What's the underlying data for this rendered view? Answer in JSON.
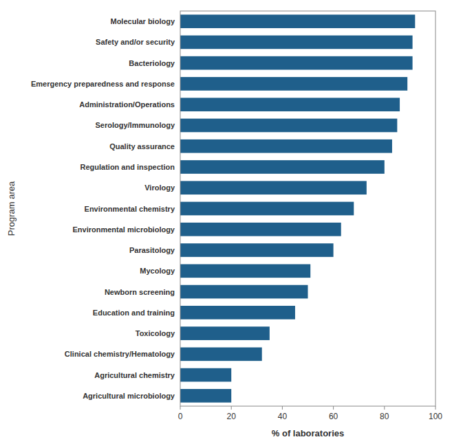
{
  "chart_data": {
    "type": "bar",
    "orientation": "horizontal",
    "categories": [
      "Agricultural microbiology",
      "Agricultural chemistry",
      "Clinical chemistry/Hematology",
      "Toxicology",
      "Education and training",
      "Newborn screening",
      "Mycology",
      "Parasitology",
      "Environmental microbiology",
      "Environmental chemistry",
      "Virology",
      "Regulation and inspection",
      "Quality assurance",
      "Serology/Immunology",
      "Administration/Operations",
      "Emergency preparedness and response",
      "Bacteriology",
      "Safety and/or security",
      "Molecular biology"
    ],
    "values": [
      20,
      20,
      32,
      35,
      45,
      50,
      51,
      60,
      63,
      68,
      73,
      80,
      83,
      85,
      86,
      89,
      91,
      91,
      92
    ],
    "color": "#1f5f8b",
    "xlabel": "% of laboratories",
    "ylabel": "Program area",
    "xlim": [
      0,
      100
    ],
    "xticks": [
      0,
      20,
      40,
      60,
      80,
      100
    ],
    "grid": false
  }
}
